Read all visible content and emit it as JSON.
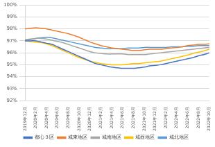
{
  "chart_data": {
    "type": "line",
    "categories": [
      "2019年12月",
      null,
      "2020年2月",
      null,
      "2020年4月",
      null,
      "2020年6月",
      null,
      "2020年8月",
      null,
      "2020年10月",
      null,
      "2020年12月",
      null,
      "2021年2月",
      null,
      "2021年4月",
      null,
      "2021年6月",
      null,
      "2021年8月",
      null,
      "2021年10月",
      null,
      "2021年12月",
      null,
      "2022年2月",
      null,
      "2022年4月",
      null,
      "2022年6月",
      null,
      "2022年8月",
      null,
      "2022年10月"
    ],
    "series": [
      {
        "name": "都心３区",
        "color": "#4472c4",
        "values": [
          97.0,
          97.0,
          97.0,
          96.9,
          96.8,
          96.7,
          96.5,
          96.3,
          96.1,
          95.9,
          95.7,
          95.5,
          95.3,
          95.1,
          95.0,
          94.9,
          94.8,
          94.75,
          94.7,
          94.7,
          94.7,
          94.75,
          94.8,
          94.9,
          94.95,
          95.0,
          95.1,
          95.2,
          95.3,
          95.4,
          95.5,
          95.6,
          95.75,
          95.85,
          96.0
        ]
      },
      {
        "name": "城東地区",
        "color": "#ed7d31",
        "values": [
          98.0,
          98.05,
          98.1,
          98.05,
          98.0,
          97.9,
          97.8,
          97.7,
          97.6,
          97.45,
          97.3,
          97.1,
          96.9,
          96.75,
          96.6,
          96.5,
          96.4,
          96.35,
          96.3,
          96.25,
          96.2,
          96.2,
          96.25,
          96.3,
          96.3,
          96.3,
          96.35,
          96.4,
          96.45,
          96.5,
          96.6,
          96.65,
          96.7,
          96.7,
          96.75
        ]
      },
      {
        "name": "城南地区",
        "color": "#a5a5a5",
        "values": [
          97.1,
          97.15,
          97.2,
          97.2,
          97.15,
          97.05,
          96.95,
          96.85,
          96.7,
          96.55,
          96.4,
          96.25,
          96.1,
          96.0,
          95.95,
          95.9,
          95.9,
          95.9,
          95.9,
          95.85,
          95.85,
          95.85,
          95.85,
          95.9,
          95.95,
          96.0,
          96.05,
          96.1,
          96.15,
          96.2,
          96.25,
          96.3,
          96.35,
          96.4,
          96.45
        ]
      },
      {
        "name": "城西地区",
        "color": "#ffc000",
        "values": [
          97.0,
          96.95,
          96.9,
          96.85,
          96.75,
          96.6,
          96.4,
          96.2,
          96.0,
          95.8,
          95.6,
          95.45,
          95.3,
          95.2,
          95.1,
          95.05,
          95.0,
          95.0,
          95.0,
          95.05,
          95.1,
          95.1,
          95.15,
          95.2,
          95.25,
          95.3,
          95.4,
          95.5,
          95.6,
          95.7,
          95.8,
          95.95,
          96.05,
          96.15,
          96.3
        ]
      },
      {
        "name": "城北地区",
        "color": "#5b9bd5",
        "values": [
          97.05,
          97.1,
          97.2,
          97.25,
          97.3,
          97.25,
          97.15,
          97.05,
          96.95,
          96.85,
          96.75,
          96.65,
          96.55,
          96.45,
          96.4,
          96.35,
          96.35,
          96.35,
          96.35,
          96.4,
          96.4,
          96.4,
          96.45,
          96.45,
          96.45,
          96.45,
          96.45,
          96.5,
          96.5,
          96.5,
          96.55,
          96.55,
          96.6,
          96.6,
          96.6
        ]
      }
    ],
    "ylim": [
      92,
      100
    ],
    "yticks": [
      {
        "value": 92,
        "label": "92%"
      },
      {
        "value": 93,
        "label": "93%"
      },
      {
        "value": 94,
        "label": "94%"
      },
      {
        "value": 95,
        "label": "95%"
      },
      {
        "value": 96,
        "label": "96%"
      },
      {
        "value": 97,
        "label": "97%"
      },
      {
        "value": 98,
        "label": "98%"
      },
      {
        "value": 99,
        "label": "99%"
      },
      {
        "value": 100,
        "label": "100%"
      }
    ],
    "grid": true,
    "legend": "bottom"
  }
}
